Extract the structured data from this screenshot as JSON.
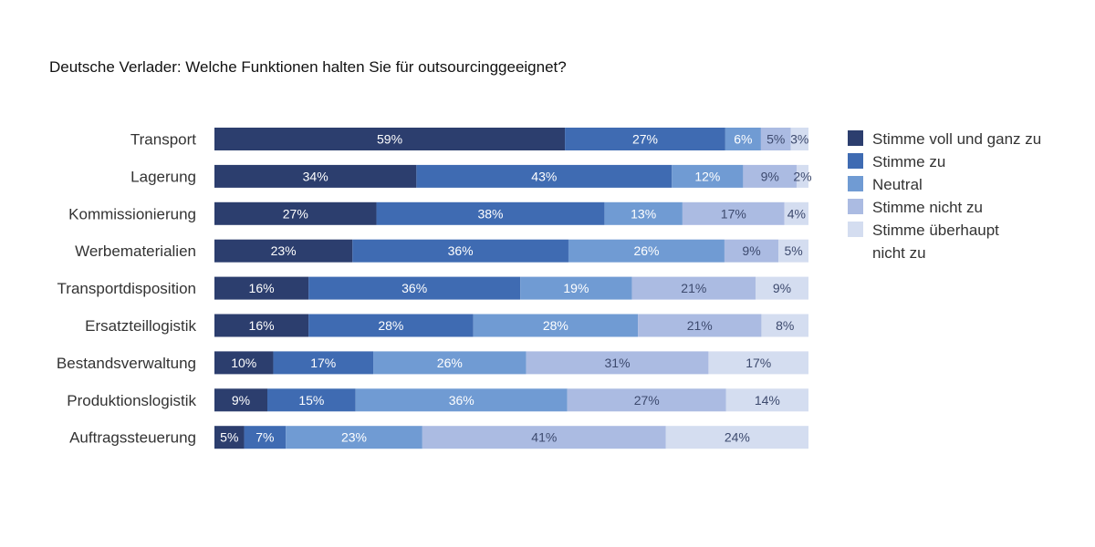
{
  "chart_data": {
    "type": "bar",
    "orientation": "horizontal",
    "stacked": true,
    "title": "Deutsche Verlader: Welche Funktionen halten Sie für outsourcinggeeignet?",
    "xlabel": "",
    "ylabel": "",
    "grid": false,
    "legend_position": "right",
    "value_suffix": "%",
    "categories": [
      "Transport",
      "Lagerung",
      "Kommissionierung",
      "Werbematerialien",
      "Transportdisposition",
      "Ersatzteillogistik",
      "Bestandsverwaltung",
      "Produktionslogistik",
      "Auftragssteuerung"
    ],
    "series": [
      {
        "name": "Stimme voll und ganz zu",
        "color": "#2c3e6e",
        "values": [
          59,
          34,
          27,
          23,
          16,
          16,
          10,
          9,
          5
        ]
      },
      {
        "name": "Stimme zu",
        "color": "#3f6bb2",
        "values": [
          27,
          43,
          38,
          36,
          36,
          28,
          17,
          15,
          7
        ]
      },
      {
        "name": "Neutral",
        "color": "#709bd3",
        "values": [
          6,
          12,
          13,
          26,
          19,
          28,
          26,
          36,
          23
        ]
      },
      {
        "name": "Stimme nicht zu",
        "color": "#abbbe2",
        "values": [
          5,
          9,
          17,
          9,
          21,
          21,
          31,
          27,
          41
        ]
      },
      {
        "name": "Stimme überhaupt nicht zu",
        "color": "#d4ddf0",
        "values": [
          3,
          2,
          4,
          5,
          9,
          8,
          17,
          14,
          24
        ]
      }
    ],
    "legend_lines": [
      [
        "Stimme voll und ganz zu"
      ],
      [
        "Stimme zu"
      ],
      [
        "Neutral"
      ],
      [
        "Stimme nicht zu"
      ],
      [
        "Stimme überhaupt",
        "nicht zu"
      ]
    ]
  }
}
